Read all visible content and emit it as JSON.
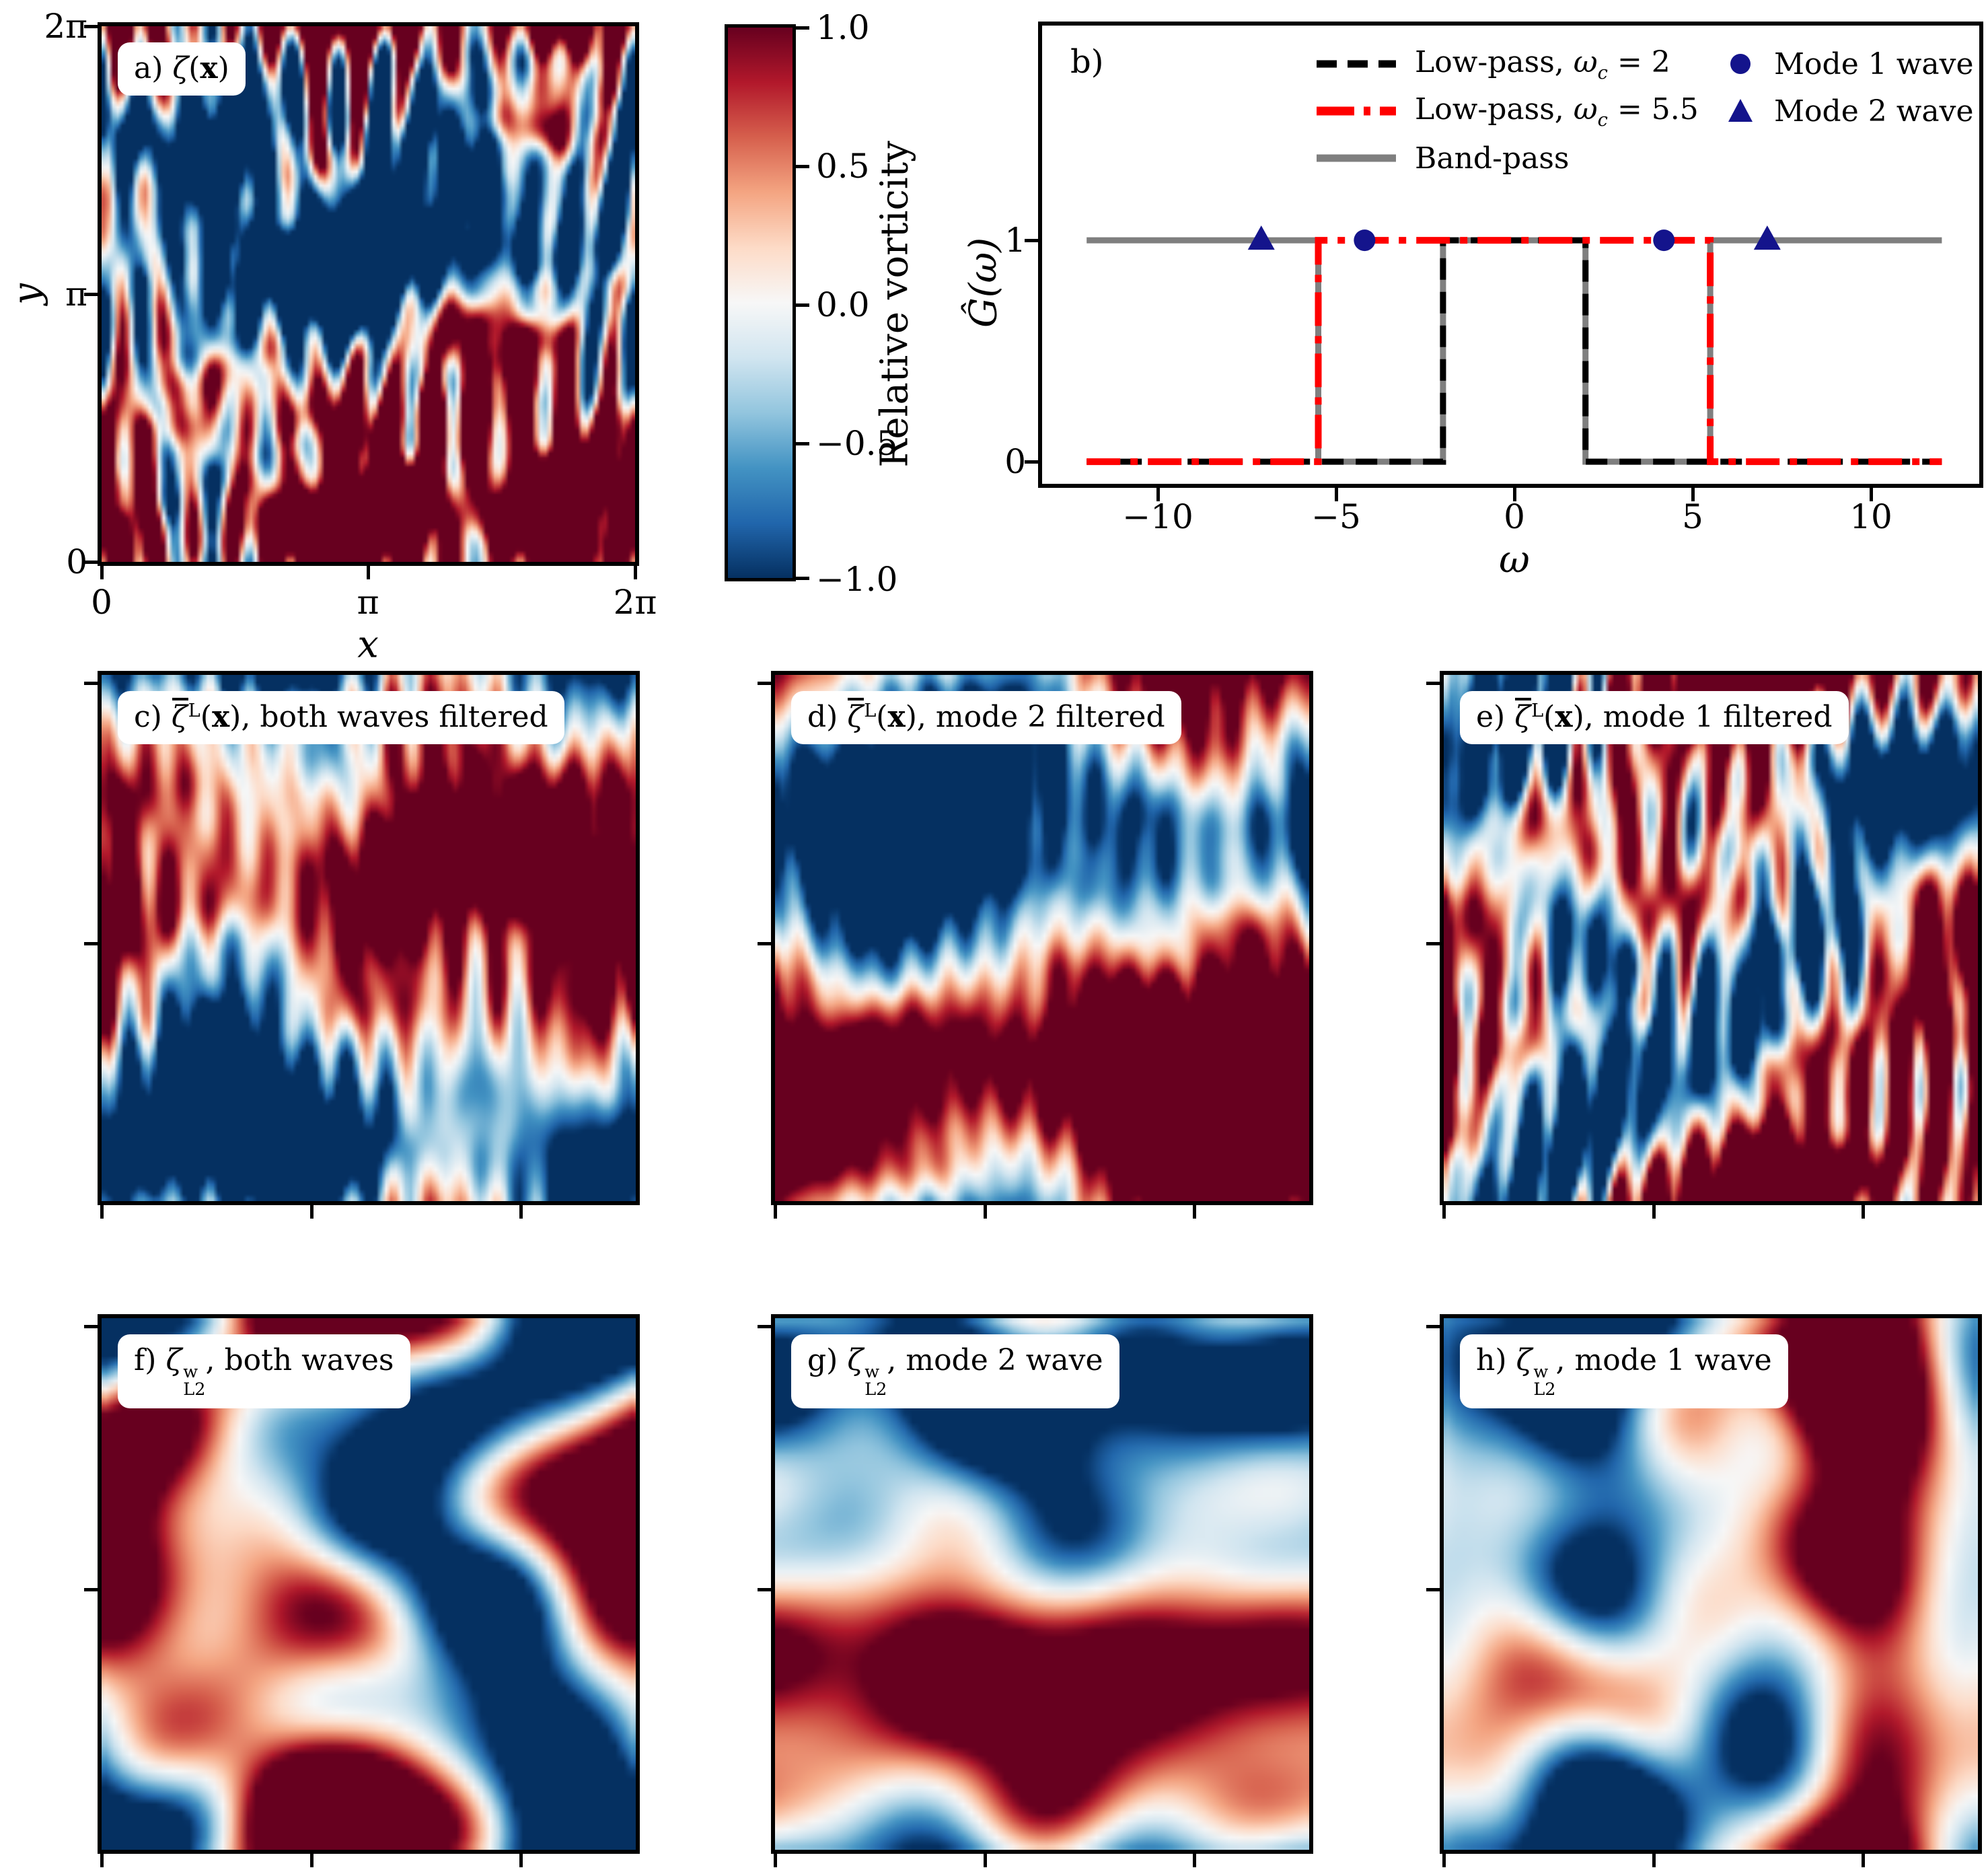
{
  "colors": {
    "lowpass2": "#000000",
    "lowpass55": "#ff0000",
    "bandpass": "#7f7f7f",
    "wave_markers": "#14148c",
    "cmap_max_red": "#67001f",
    "cmap_mid": "#f7f7f7",
    "cmap_min_blue": "#053061",
    "label_box": "#ffffff"
  },
  "colorbar": {
    "label": "Relative vorticity",
    "ticks": [
      "1.0",
      "0.5",
      "0.0",
      "−0.5",
      "−1.0"
    ]
  },
  "panel_a": {
    "corner": {
      "prefix": "a) ",
      "sym": "ζ",
      "open": "(",
      "arg": "x",
      "close": ")",
      "suffix": ""
    },
    "xlabel": "x",
    "ylabel": "y",
    "xticks": [
      "0",
      "π",
      "2π"
    ],
    "yticks": [
      "2π",
      "π",
      "0"
    ]
  },
  "panel_b": {
    "corner": "b)",
    "xlabel": "ω",
    "ylabel": "Ĝ(ω)",
    "xticks": [
      "−10",
      "−5",
      "0",
      "5",
      "10"
    ],
    "yticks": [
      "1",
      "0"
    ],
    "legend": {
      "col1": [
        {
          "pre": "Low-pass, ",
          "sym": "ω",
          "sub": "c",
          "post": " = 2",
          "style": "black-dashed"
        },
        {
          "pre": "Low-pass, ",
          "sym": "ω",
          "sub": "c",
          "post": " = 5.5",
          "style": "red-dashdot"
        },
        {
          "pre": "Band-pass",
          "sym": "",
          "sub": "",
          "post": "",
          "style": "gray-solid"
        }
      ],
      "col2": [
        {
          "label": "Mode 1 wave",
          "marker": "circle"
        },
        {
          "label": "Mode 2 wave",
          "marker": "triangle"
        }
      ]
    }
  },
  "panel_c": {
    "corner": {
      "prefix": "c) ",
      "sym": "ζ",
      "sup": "L",
      "open": "(",
      "arg": "x",
      "close": ")",
      "suffix": ", both waves filtered"
    }
  },
  "panel_d": {
    "corner": {
      "prefix": "d) ",
      "sym": "ζ",
      "sup": "L",
      "open": "(",
      "arg": "x",
      "close": ")",
      "suffix": ", mode 2 filtered"
    }
  },
  "panel_e": {
    "corner": {
      "prefix": "e) ",
      "sym": "ζ",
      "sup": "L",
      "open": "(",
      "arg": "x",
      "close": ")",
      "suffix": ", mode 1 filtered"
    }
  },
  "panel_f": {
    "corner": {
      "prefix": "f) ",
      "sym": "ζ",
      "sup": "w",
      "sub": "L2",
      "suffix": ", both waves"
    }
  },
  "panel_g": {
    "corner": {
      "prefix": "g) ",
      "sym": "ζ",
      "sup": "w",
      "sub": "L2",
      "suffix": ", mode 2 wave"
    }
  },
  "panel_h": {
    "corner": {
      "prefix": "h) ",
      "sym": "ζ",
      "sup": "w",
      "sub": "L2",
      "suffix": ", mode 1 wave"
    }
  },
  "chart_data": [
    {
      "type": "line",
      "panel": "b",
      "xlabel": "ω",
      "ylabel": "Ĝ(ω)",
      "xlim": [
        -13.25,
        13.05
      ],
      "ylim": [
        -0.1,
        1.97
      ],
      "xticks": [
        -10,
        -5,
        0,
        5,
        10
      ],
      "yticks": [
        0,
        1
      ],
      "grid": false,
      "legend_position": "upper center, two columns, no frame",
      "series": [
        {
          "name": "Band-pass",
          "color": "#7f7f7f",
          "dash": "solid",
          "width": 9,
          "x": [
            -12,
            -5.5,
            -5.5,
            -2,
            -2,
            2,
            2,
            5.5,
            5.5,
            12
          ],
          "y": [
            1,
            1,
            0,
            0,
            1,
            1,
            0,
            0,
            1,
            1
          ]
        },
        {
          "name": "Low-pass, ωc = 2",
          "color": "#000000",
          "dash": "dashed",
          "width": 9,
          "x": [
            -12,
            -2,
            -2,
            2,
            2,
            12
          ],
          "y": [
            0,
            0,
            1,
            1,
            0,
            0
          ]
        },
        {
          "name": "Low-pass, ωc = 5.5",
          "color": "#ff0000",
          "dash": "dashdot",
          "width": 10,
          "x": [
            -12,
            -5.5,
            -5.5,
            5.5,
            5.5,
            12
          ],
          "y": [
            0,
            0,
            1,
            1,
            0,
            0
          ]
        }
      ],
      "markers": [
        {
          "name": "Mode 1 wave",
          "shape": "circle",
          "color": "#14148c",
          "points": [
            [
              -4.2,
              1
            ],
            [
              4.2,
              1
            ]
          ]
        },
        {
          "name": "Mode 2 wave",
          "shape": "triangle",
          "color": "#14148c",
          "points": [
            [
              -7.1,
              1
            ],
            [
              7.1,
              1
            ]
          ]
        }
      ]
    },
    {
      "type": "heatmap",
      "panel": "a",
      "title": "a) ζ(x)",
      "xlabel": "x",
      "ylabel": "y",
      "x_range": "0 to 2π",
      "y_range": "0 to 2π",
      "colormap": "RdBu_r",
      "clim": [
        -1,
        1
      ],
      "colorbar_label": "Relative vorticity",
      "description": "Unfiltered relative vorticity: fine turbulent filaments, saturated dark-red anticyclone top-centre/right and centre, dark-blue vortices left and lower-centre"
    },
    {
      "type": "heatmap",
      "panel": "c",
      "title": "c) ζ̄L(x), both waves filtered",
      "colormap": "RdBu_r",
      "clim": [
        -1,
        1
      ],
      "description": "Lagrangian-mean vorticity with both waves filtered: moderate red/blue swirls, small dark-blue vortex pair left-centre"
    },
    {
      "type": "heatmap",
      "panel": "d",
      "title": "d) ζ̄L(x), mode 2 filtered",
      "colormap": "RdBu_r",
      "clim": [
        -1,
        1
      ],
      "description": "Lagrangian-mean vorticity with mode 2 filtered: strong dark-red swirls centre/right, blue upper-left"
    },
    {
      "type": "heatmap",
      "panel": "e",
      "title": "e) ζ̄L(x), mode 1 filtered",
      "colormap": "RdBu_r",
      "clim": [
        -1,
        1
      ],
      "description": "Lagrangian-mean vorticity with mode 1 filtered: red filamentary swirls with broad blue regions left and lower-right"
    },
    {
      "type": "heatmap",
      "panel": "f",
      "title": "f) ζwL2, both waves",
      "colormap": "RdBu_r",
      "clim": [
        -1,
        1
      ],
      "description": "Wave vorticity, both waves: smooth broad dark-red blob upper-centre, blue patch left, red band lower-centre"
    },
    {
      "type": "heatmap",
      "panel": "g",
      "title": "g) ζwL2, mode 2 wave",
      "colormap": "RdBu_r",
      "clim": [
        -1,
        1
      ],
      "description": "Mode 2 wave vorticity: smooth horizontal red/blue bands"
    },
    {
      "type": "heatmap",
      "panel": "h",
      "title": "h) ζwL2, mode 1 wave",
      "colormap": "RdBu_r",
      "clim": [
        -1,
        1
      ],
      "description": "Mode 1 wave vorticity: smooth vertical red column centre-right, blue left"
    }
  ]
}
